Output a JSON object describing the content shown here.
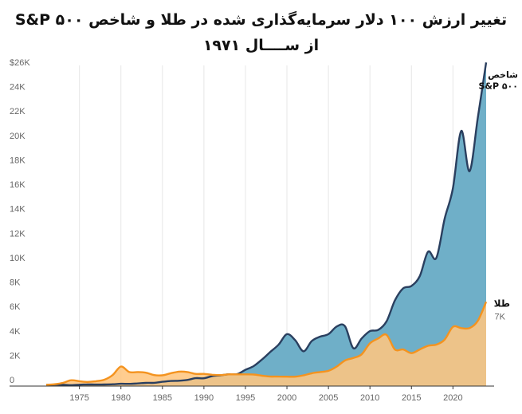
{
  "chart_data": {
    "type": "area",
    "title_line1": "تغییر ارزش ۱۰۰ دلار سرمایه‌گذاری شده در طلا و شاخص S&P ۵۰۰",
    "title_line2": "از ســــال ۱۹۷۱",
    "xlim": [
      1971,
      2024
    ],
    "ylim": [
      0,
      26000
    ],
    "x_ticks": [
      1975,
      1980,
      1985,
      1990,
      1995,
      2000,
      2005,
      2010,
      2015,
      2020
    ],
    "y_ticks": [
      {
        "value": 0,
        "label": "0"
      },
      {
        "value": 2000,
        "label": "2K"
      },
      {
        "value": 4000,
        "label": "4K"
      },
      {
        "value": 6000,
        "label": "6K"
      },
      {
        "value": 8000,
        "label": "8K"
      },
      {
        "value": 10000,
        "label": "10K"
      },
      {
        "value": 12000,
        "label": "12K"
      },
      {
        "value": 14000,
        "label": "14K"
      },
      {
        "value": 16000,
        "label": "16K"
      },
      {
        "value": 18000,
        "label": "18K"
      },
      {
        "value": 20000,
        "label": "20K"
      },
      {
        "value": 22000,
        "label": "22K"
      },
      {
        "value": 24000,
        "label": "24K"
      },
      {
        "value": 26000,
        "label": "$26K"
      }
    ],
    "grid": "vertical",
    "series": [
      {
        "name": "شاخص S&P ۵۰۰",
        "name_line1": "شاخص",
        "name_line2": "S&P ۵۰۰",
        "color": "#2a3f5f",
        "fill": "#6fafc8",
        "points": [
          [
            1971,
            100
          ],
          [
            1972,
            120
          ],
          [
            1973,
            110
          ],
          [
            1974,
            80
          ],
          [
            1975,
            110
          ],
          [
            1976,
            135
          ],
          [
            1977,
            125
          ],
          [
            1978,
            130
          ],
          [
            1979,
            150
          ],
          [
            1980,
            190
          ],
          [
            1981,
            180
          ],
          [
            1982,
            215
          ],
          [
            1983,
            260
          ],
          [
            1984,
            270
          ],
          [
            1985,
            350
          ],
          [
            1986,
            420
          ],
          [
            1987,
            440
          ],
          [
            1988,
            500
          ],
          [
            1989,
            650
          ],
          [
            1990,
            640
          ],
          [
            1991,
            820
          ],
          [
            1992,
            880
          ],
          [
            1993,
            970
          ],
          [
            1994,
            980
          ],
          [
            1995,
            1330
          ],
          [
            1996,
            1640
          ],
          [
            1997,
            2180
          ],
          [
            1998,
            2800
          ],
          [
            1999,
            3400
          ],
          [
            2000,
            4250
          ],
          [
            2001,
            3750
          ],
          [
            2002,
            2850
          ],
          [
            2003,
            3700
          ],
          [
            2004,
            4050
          ],
          [
            2005,
            4250
          ],
          [
            2006,
            4880
          ],
          [
            2007,
            4900
          ],
          [
            2008,
            3100
          ],
          [
            2009,
            3900
          ],
          [
            2010,
            4500
          ],
          [
            2011,
            4600
          ],
          [
            2012,
            5300
          ],
          [
            2013,
            7000
          ],
          [
            2014,
            8000
          ],
          [
            2015,
            8200
          ],
          [
            2016,
            9000
          ],
          [
            2017,
            11000
          ],
          [
            2018,
            10500
          ],
          [
            2019,
            13700
          ],
          [
            2020,
            16200
          ],
          [
            2021,
            20900
          ],
          [
            2022,
            17600
          ],
          [
            2023,
            22000
          ],
          [
            2024,
            26500
          ]
        ]
      },
      {
        "name": "طلا",
        "color": "#f4931f",
        "fill": "#ffc680",
        "value_label": "7K",
        "points": [
          [
            1971,
            100
          ],
          [
            1972,
            150
          ],
          [
            1973,
            260
          ],
          [
            1974,
            480
          ],
          [
            1975,
            400
          ],
          [
            1976,
            340
          ],
          [
            1977,
            400
          ],
          [
            1978,
            520
          ],
          [
            1979,
            900
          ],
          [
            1980,
            1600
          ],
          [
            1981,
            1150
          ],
          [
            1982,
            1150
          ],
          [
            1983,
            1100
          ],
          [
            1984,
            900
          ],
          [
            1985,
            880
          ],
          [
            1986,
            1050
          ],
          [
            1987,
            1180
          ],
          [
            1988,
            1150
          ],
          [
            1989,
            1000
          ],
          [
            1990,
            1000
          ],
          [
            1991,
            930
          ],
          [
            1992,
            900
          ],
          [
            1993,
            960
          ],
          [
            1994,
            960
          ],
          [
            1995,
            960
          ],
          [
            1996,
            950
          ],
          [
            1997,
            850
          ],
          [
            1998,
            780
          ],
          [
            1999,
            780
          ],
          [
            2000,
            770
          ],
          [
            2001,
            770
          ],
          [
            2002,
            880
          ],
          [
            2003,
            1050
          ],
          [
            2004,
            1150
          ],
          [
            2005,
            1250
          ],
          [
            2006,
            1600
          ],
          [
            2007,
            2100
          ],
          [
            2008,
            2300
          ],
          [
            2009,
            2600
          ],
          [
            2010,
            3500
          ],
          [
            2011,
            3900
          ],
          [
            2012,
            4200
          ],
          [
            2013,
            3000
          ],
          [
            2014,
            3000
          ],
          [
            2015,
            2700
          ],
          [
            2016,
            3000
          ],
          [
            2017,
            3300
          ],
          [
            2018,
            3400
          ],
          [
            2019,
            3800
          ],
          [
            2020,
            4850
          ],
          [
            2021,
            4750
          ],
          [
            2022,
            4750
          ],
          [
            2023,
            5350
          ],
          [
            2024,
            6900
          ]
        ]
      }
    ]
  }
}
